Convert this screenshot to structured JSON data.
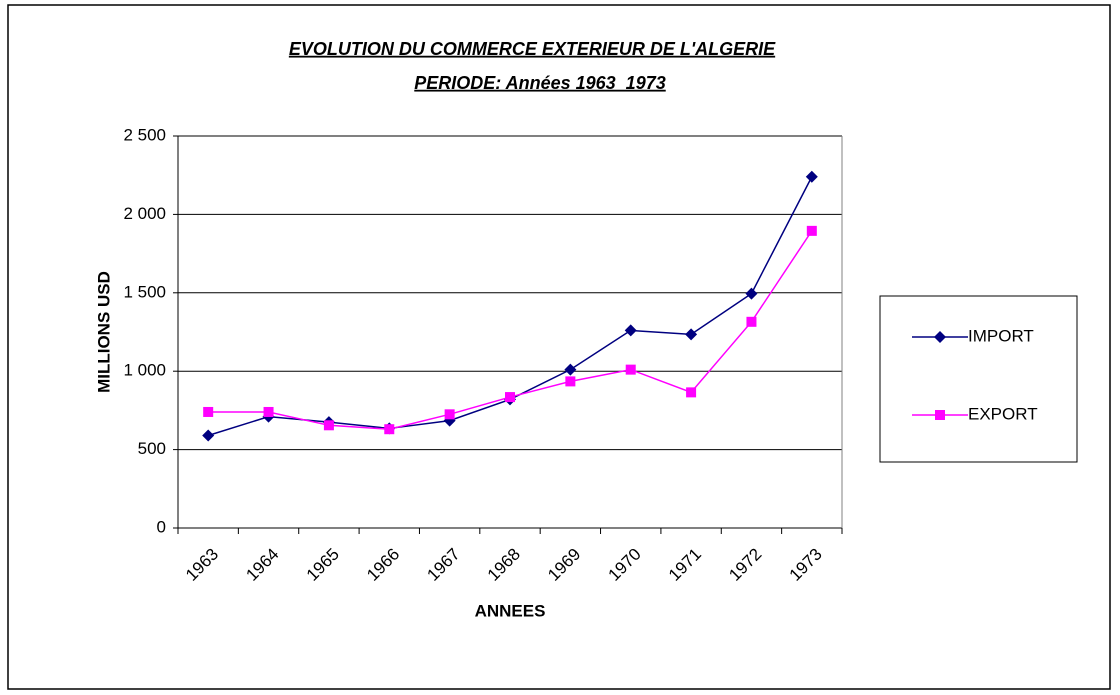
{
  "chart_data": {
    "type": "line",
    "title": "EVOLUTION DU COMMERCE EXTERIEUR DE L'ALGERIE",
    "subtitle": "PERIODE: Années 1963_1973",
    "x_label": "ANNEES",
    "y_label": "MILLIONS USD",
    "categories": [
      "1963",
      "1964",
      "1965",
      "1966",
      "1967",
      "1968",
      "1969",
      "1970",
      "1971",
      "1972",
      "1973"
    ],
    "series": [
      {
        "name": "IMPORT",
        "color": "#000080",
        "marker": "diamond",
        "values": [
          590,
          710,
          675,
          635,
          685,
          820,
          1010,
          1260,
          1235,
          1495,
          2240
        ]
      },
      {
        "name": "EXPORT",
        "color": "#ff00ff",
        "marker": "square",
        "values": [
          740,
          740,
          655,
          630,
          725,
          835,
          935,
          1010,
          865,
          1315,
          1895
        ]
      }
    ],
    "ylim": [
      0,
      2500
    ],
    "yticks": [
      0,
      500,
      {
        "value": 1000,
        "label": "1 000"
      },
      {
        "value": 1500,
        "label": "1 500"
      },
      {
        "value": 2000,
        "label": "2 000"
      },
      {
        "value": 2500,
        "label": "2 500"
      }
    ],
    "grid": true,
    "legend": "right"
  }
}
